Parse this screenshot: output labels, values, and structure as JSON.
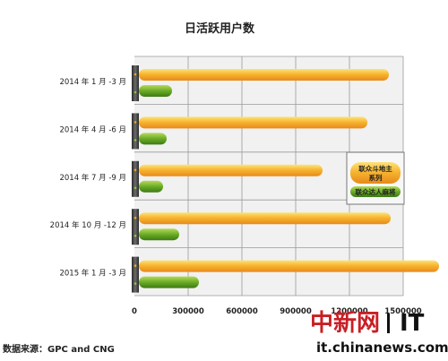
{
  "chart_data": {
    "type": "bar",
    "orientation": "horizontal",
    "title": "日活跃用户数",
    "categories": [
      "2014 年 1 月 -3 月",
      "2014 年 4 月 -6 月",
      "2014 年 7 月 -9 月",
      "2014 年 10 月 -12 月",
      "2015 年 1 月 -3 月"
    ],
    "series": [
      {
        "name": "联众斗地主系列",
        "values": [
          1420000,
          1300000,
          1050000,
          1430000,
          1700000
        ],
        "color": "#f5a623"
      },
      {
        "name": "联众达人麻将",
        "values": [
          210000,
          180000,
          160000,
          250000,
          360000
        ],
        "color": "#5a9e1e"
      }
    ],
    "xticks": [
      0,
      300000,
      600000,
      900000,
      1200000,
      1500000
    ],
    "xlim": [
      0,
      1700000
    ],
    "grid": true,
    "legend_position": "right",
    "legend_lines": [
      "联众斗地主",
      "系列",
      "联众达人麻将"
    ]
  },
  "footnote": "数据来源：GPC and CNG",
  "watermark": {
    "brand": "中新网",
    "section": "IT",
    "url": "it.chinanews.com"
  }
}
